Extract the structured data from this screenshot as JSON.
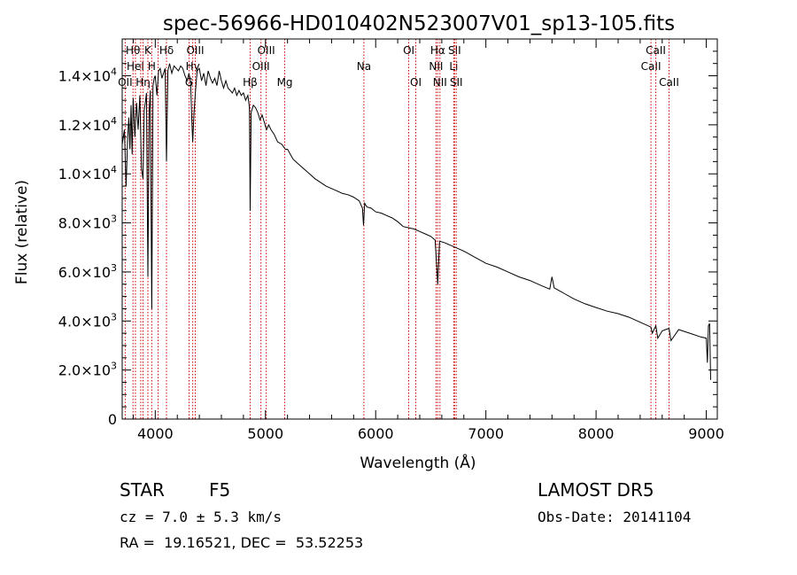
{
  "chart_data": {
    "type": "line",
    "title": "spec-56966-HD010402N523007V01_sp13-105.fits",
    "xlabel": "Wavelength (Å)",
    "ylabel": "Flux (relative)",
    "xlim": [
      3700,
      9100
    ],
    "ylim": [
      0,
      15500
    ],
    "x_ticks": [
      {
        "value": 4000,
        "label": "4000"
      },
      {
        "value": 5000,
        "label": "5000"
      },
      {
        "value": 6000,
        "label": "6000"
      },
      {
        "value": 7000,
        "label": "7000"
      },
      {
        "value": 8000,
        "label": "8000"
      },
      {
        "value": 9000,
        "label": "9000"
      }
    ],
    "y_ticks": [
      {
        "value": 0,
        "mant": "0",
        "exp": ""
      },
      {
        "value": 2000,
        "mant": "2.0×10",
        "exp": "3"
      },
      {
        "value": 4000,
        "mant": "4.0×10",
        "exp": "3"
      },
      {
        "value": 6000,
        "mant": "6.0×10",
        "exp": "3"
      },
      {
        "value": 8000,
        "mant": "8.0×10",
        "exp": "3"
      },
      {
        "value": 10000,
        "mant": "1.0×10",
        "exp": "4"
      },
      {
        "value": 12000,
        "mant": "1.2×10",
        "exp": "4"
      },
      {
        "value": 14000,
        "mant": "1.4×10",
        "exp": "4"
      }
    ],
    "series": [
      {
        "x": [
          3700,
          3720,
          3735,
          3750,
          3760,
          3770,
          3780,
          3790,
          3800,
          3815,
          3830,
          3845,
          3860,
          3875,
          3889,
          3900,
          3910,
          3920,
          3933,
          3945,
          3955,
          3968,
          3980,
          3990,
          4000,
          4015,
          4030,
          4045,
          4060,
          4075,
          4090,
          4102,
          4115,
          4130,
          4150,
          4170,
          4190,
          4210,
          4230,
          4250,
          4270,
          4290,
          4305,
          4320,
          4330,
          4340,
          4352,
          4365,
          4380,
          4400,
          4420,
          4440,
          4460,
          4480,
          4500,
          4520,
          4540,
          4560,
          4580,
          4600,
          4620,
          4640,
          4660,
          4680,
          4700,
          4720,
          4740,
          4760,
          4780,
          4800,
          4820,
          4840,
          4855,
          4861,
          4870,
          4890,
          4910,
          4930,
          4950,
          4970,
          4990,
          5010,
          5030,
          5050,
          5080,
          5110,
          5150,
          5180,
          5200,
          5250,
          5300,
          5350,
          5400,
          5450,
          5500,
          5550,
          5600,
          5650,
          5700,
          5750,
          5800,
          5850,
          5880,
          5890,
          5900,
          5920,
          5960,
          6000,
          6050,
          6100,
          6150,
          6200,
          6250,
          6300,
          6350,
          6400,
          6450,
          6500,
          6540,
          6563,
          6580,
          6620,
          6700,
          6800,
          6900,
          7000,
          7100,
          7200,
          7300,
          7400,
          7500,
          7580,
          7600,
          7620,
          7700,
          7800,
          7900,
          8000,
          8100,
          8200,
          8300,
          8400,
          8498,
          8510,
          8542,
          8560,
          8600,
          8662,
          8680,
          8750,
          8850,
          8950,
          9000,
          9010,
          9020,
          9030,
          9040
        ],
        "y": [
          11200,
          11800,
          9500,
          11500,
          12300,
          11000,
          12800,
          10800,
          13100,
          11500,
          12900,
          11800,
          13200,
          10200,
          9800,
          12600,
          12900,
          13300,
          5800,
          12600,
          13400,
          4500,
          13600,
          13900,
          14000,
          13200,
          14200,
          14300,
          13900,
          14100,
          14300,
          10500,
          14200,
          14500,
          14100,
          14400,
          14300,
          14200,
          14400,
          14300,
          14000,
          13800,
          14100,
          13800,
          12400,
          11300,
          12500,
          13400,
          14200,
          14300,
          13800,
          14100,
          13600,
          14200,
          13900,
          13700,
          13900,
          13600,
          14200,
          13800,
          13500,
          13800,
          13500,
          13400,
          13300,
          13500,
          13200,
          13400,
          13200,
          13300,
          13000,
          13200,
          12700,
          8500,
          12500,
          12800,
          12700,
          12500,
          12200,
          12400,
          12100,
          11800,
          12000,
          11800,
          11600,
          11300,
          11200,
          11000,
          11000,
          10600,
          10400,
          10200,
          10000,
          9800,
          9650,
          9500,
          9400,
          9300,
          9200,
          9150,
          9050,
          8900,
          8600,
          7900,
          8800,
          8650,
          8600,
          8450,
          8400,
          8300,
          8200,
          8050,
          7850,
          7800,
          7750,
          7650,
          7550,
          7450,
          7300,
          5500,
          7250,
          7200,
          7050,
          6850,
          6600,
          6350,
          6200,
          6000,
          5800,
          5650,
          5450,
          5300,
          5800,
          5350,
          5150,
          4900,
          4700,
          4550,
          4400,
          4300,
          4150,
          3950,
          3750,
          3500,
          3800,
          3300,
          3600,
          3700,
          3200,
          3650,
          3500,
          3350,
          3300,
          2300,
          3800,
          3900,
          1600
        ]
      }
    ],
    "spectral_lines": [
      {
        "wavelength": 3727,
        "label": "OII",
        "row": 2
      },
      {
        "wavelength": 3798,
        "label": "Hθ",
        "row": 0
      },
      {
        "wavelength": 3820,
        "label": "HeI",
        "row": 1
      },
      {
        "wavelength": 3868,
        "label": "",
        "row": 0
      },
      {
        "wavelength": 3889,
        "label": "Hη",
        "row": 2
      },
      {
        "wavelength": 3933,
        "label": "K",
        "row": 0
      },
      {
        "wavelength": 3968,
        "label": "H",
        "row": 1
      },
      {
        "wavelength": 4026,
        "label": "",
        "row": 0
      },
      {
        "wavelength": 4102,
        "label": "Hδ",
        "row": 0
      },
      {
        "wavelength": 4307,
        "label": "G",
        "row": 2
      },
      {
        "wavelength": 4340,
        "label": "Hγ",
        "row": 1
      },
      {
        "wavelength": 4363,
        "label": "OIII",
        "row": 0
      },
      {
        "wavelength": 4861,
        "label": "Hβ",
        "row": 2
      },
      {
        "wavelength": 4959,
        "label": "OIII",
        "row": 1
      },
      {
        "wavelength": 5007,
        "label": "OIII",
        "row": 0
      },
      {
        "wavelength": 5175,
        "label": "Mg",
        "row": 2
      },
      {
        "wavelength": 5893,
        "label": "Na",
        "row": 1
      },
      {
        "wavelength": 6300,
        "label": "OI",
        "row": 0
      },
      {
        "wavelength": 6364,
        "label": "OI",
        "row": 2
      },
      {
        "wavelength": 6548,
        "label": "NII",
        "row": 1
      },
      {
        "wavelength": 6563,
        "label": "Hα",
        "row": 0
      },
      {
        "wavelength": 6583,
        "label": "NII",
        "row": 2
      },
      {
        "wavelength": 6708,
        "label": "Li",
        "row": 1
      },
      {
        "wavelength": 6716,
        "label": "SII",
        "row": 0
      },
      {
        "wavelength": 6731,
        "label": "SII",
        "row": 2
      },
      {
        "wavelength": 8498,
        "label": "CaII",
        "row": 1
      },
      {
        "wavelength": 8542,
        "label": "CaII",
        "row": 0
      },
      {
        "wavelength": 8662,
        "label": "CaII",
        "row": 2
      }
    ],
    "line_color": "#000000",
    "marker_color": "#cc0000"
  },
  "info": {
    "object_class": "STAR",
    "subclass": "F5",
    "velocity": "cz = 7.0 ± 5.3 km/s",
    "coords": "RA =  19.16521, DEC =  53.52253",
    "survey": "LAMOST DR5",
    "obs_date": "Obs-Date: 20141104"
  }
}
